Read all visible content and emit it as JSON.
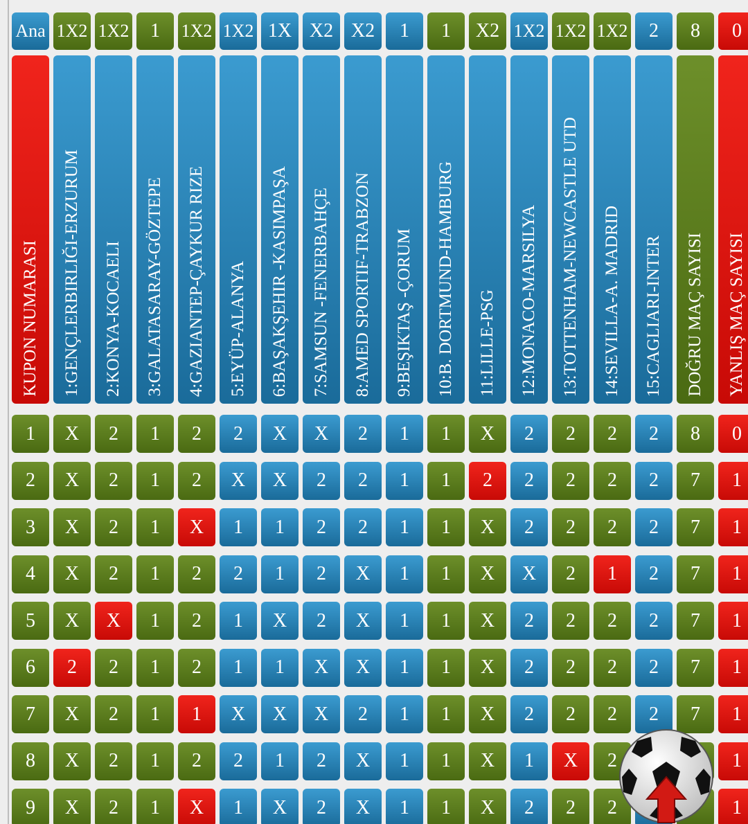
{
  "header": {
    "cells": [
      "Ana",
      "1X2",
      "1X2",
      "1",
      "1X2",
      "1X2",
      "1X",
      "X2",
      "X2",
      "1",
      "1",
      "X2",
      "1X2",
      "1X2",
      "1X2",
      "2",
      "8",
      "0"
    ],
    "colors": [
      "blue",
      "green",
      "green",
      "green",
      "green",
      "blue",
      "blue",
      "blue",
      "blue",
      "blue",
      "green",
      "green",
      "blue",
      "green",
      "green",
      "blue",
      "green",
      "red"
    ]
  },
  "columns": {
    "labels": [
      "KUPON NUMARASI",
      "1:GENÇLERBIRLIĞI-ERZURUM",
      "2:KONYA-KOCAELI",
      "3:GALATASARAY-GÖZTEPE",
      "4:GAZIANTEP-ÇAYKUR RIZE",
      "5:EYÜP-ALANYA",
      "6:BAŞAKŞEHIR -KASIMPAŞA",
      "7:SAMSUN -FENERBAHÇE",
      "8:AMED SPORTIF-TRABZON",
      "9:BEŞIKTAŞ -ÇORUM",
      "10:B. DORTMUND-HAMBURG",
      "11:LILLE-PSG",
      "12:MONACO-MARSILYA",
      "13:TOTTENHAM-NEWCASTLE UTD",
      "14:SEVILLA-A. MADRID",
      "15:CAGLIARI-INTER",
      "DOĞRU MAÇ SAYISI",
      "YANLIŞ MAÇ SAYISI"
    ],
    "colors": [
      "red",
      "blue",
      "blue",
      "blue",
      "blue",
      "blue",
      "blue",
      "blue",
      "blue",
      "blue",
      "blue",
      "blue",
      "blue",
      "blue",
      "blue",
      "blue",
      "green",
      "red"
    ]
  },
  "table": {
    "colors": [
      "green",
      "green",
      "green",
      "green",
      "green",
      "blue",
      "blue",
      "blue",
      "blue",
      "blue",
      "green",
      "green",
      "blue",
      "green",
      "green",
      "blue",
      "green",
      "red"
    ],
    "rows": [
      [
        "1",
        "X",
        "2",
        "1",
        "2",
        "2",
        "X",
        "X",
        "2",
        "1",
        "1",
        "X",
        "2",
        "2",
        "2",
        "2",
        "8",
        "0"
      ],
      [
        "2",
        "X",
        "2",
        "1",
        "2",
        "X",
        "X",
        "2",
        "2",
        "1",
        "1",
        "2",
        "2",
        "2",
        "2",
        "2",
        "7",
        "1"
      ],
      [
        "3",
        "X",
        "2",
        "1",
        "X",
        "1",
        "1",
        "2",
        "2",
        "1",
        "1",
        "X",
        "2",
        "2",
        "2",
        "2",
        "7",
        "1"
      ],
      [
        "4",
        "X",
        "2",
        "1",
        "2",
        "2",
        "1",
        "2",
        "X",
        "1",
        "1",
        "X",
        "X",
        "2",
        "1",
        "2",
        "7",
        "1"
      ],
      [
        "5",
        "X",
        "X",
        "1",
        "2",
        "1",
        "X",
        "2",
        "X",
        "1",
        "1",
        "X",
        "2",
        "2",
        "2",
        "2",
        "7",
        "1"
      ],
      [
        "6",
        "2",
        "2",
        "1",
        "2",
        "1",
        "1",
        "X",
        "X",
        "1",
        "1",
        "X",
        "2",
        "2",
        "2",
        "2",
        "7",
        "1"
      ],
      [
        "7",
        "X",
        "2",
        "1",
        "1",
        "X",
        "X",
        "X",
        "2",
        "1",
        "1",
        "X",
        "2",
        "2",
        "2",
        "2",
        "7",
        "1"
      ],
      [
        "8",
        "X",
        "2",
        "1",
        "2",
        "2",
        "1",
        "2",
        "X",
        "1",
        "1",
        "X",
        "1",
        "X",
        "2",
        null,
        null,
        "1"
      ],
      [
        "9",
        "X",
        "2",
        "1",
        "X",
        "1",
        "X",
        "2",
        "X",
        "1",
        "1",
        "X",
        "2",
        "2",
        "2",
        null,
        null,
        "1"
      ]
    ],
    "wrong": [
      [
        1,
        11
      ],
      [
        2,
        4
      ],
      [
        3,
        14
      ],
      [
        4,
        2
      ],
      [
        5,
        1
      ],
      [
        6,
        4
      ],
      [
        7,
        13
      ],
      [
        8,
        4
      ]
    ],
    "wrong_color": "red"
  }
}
